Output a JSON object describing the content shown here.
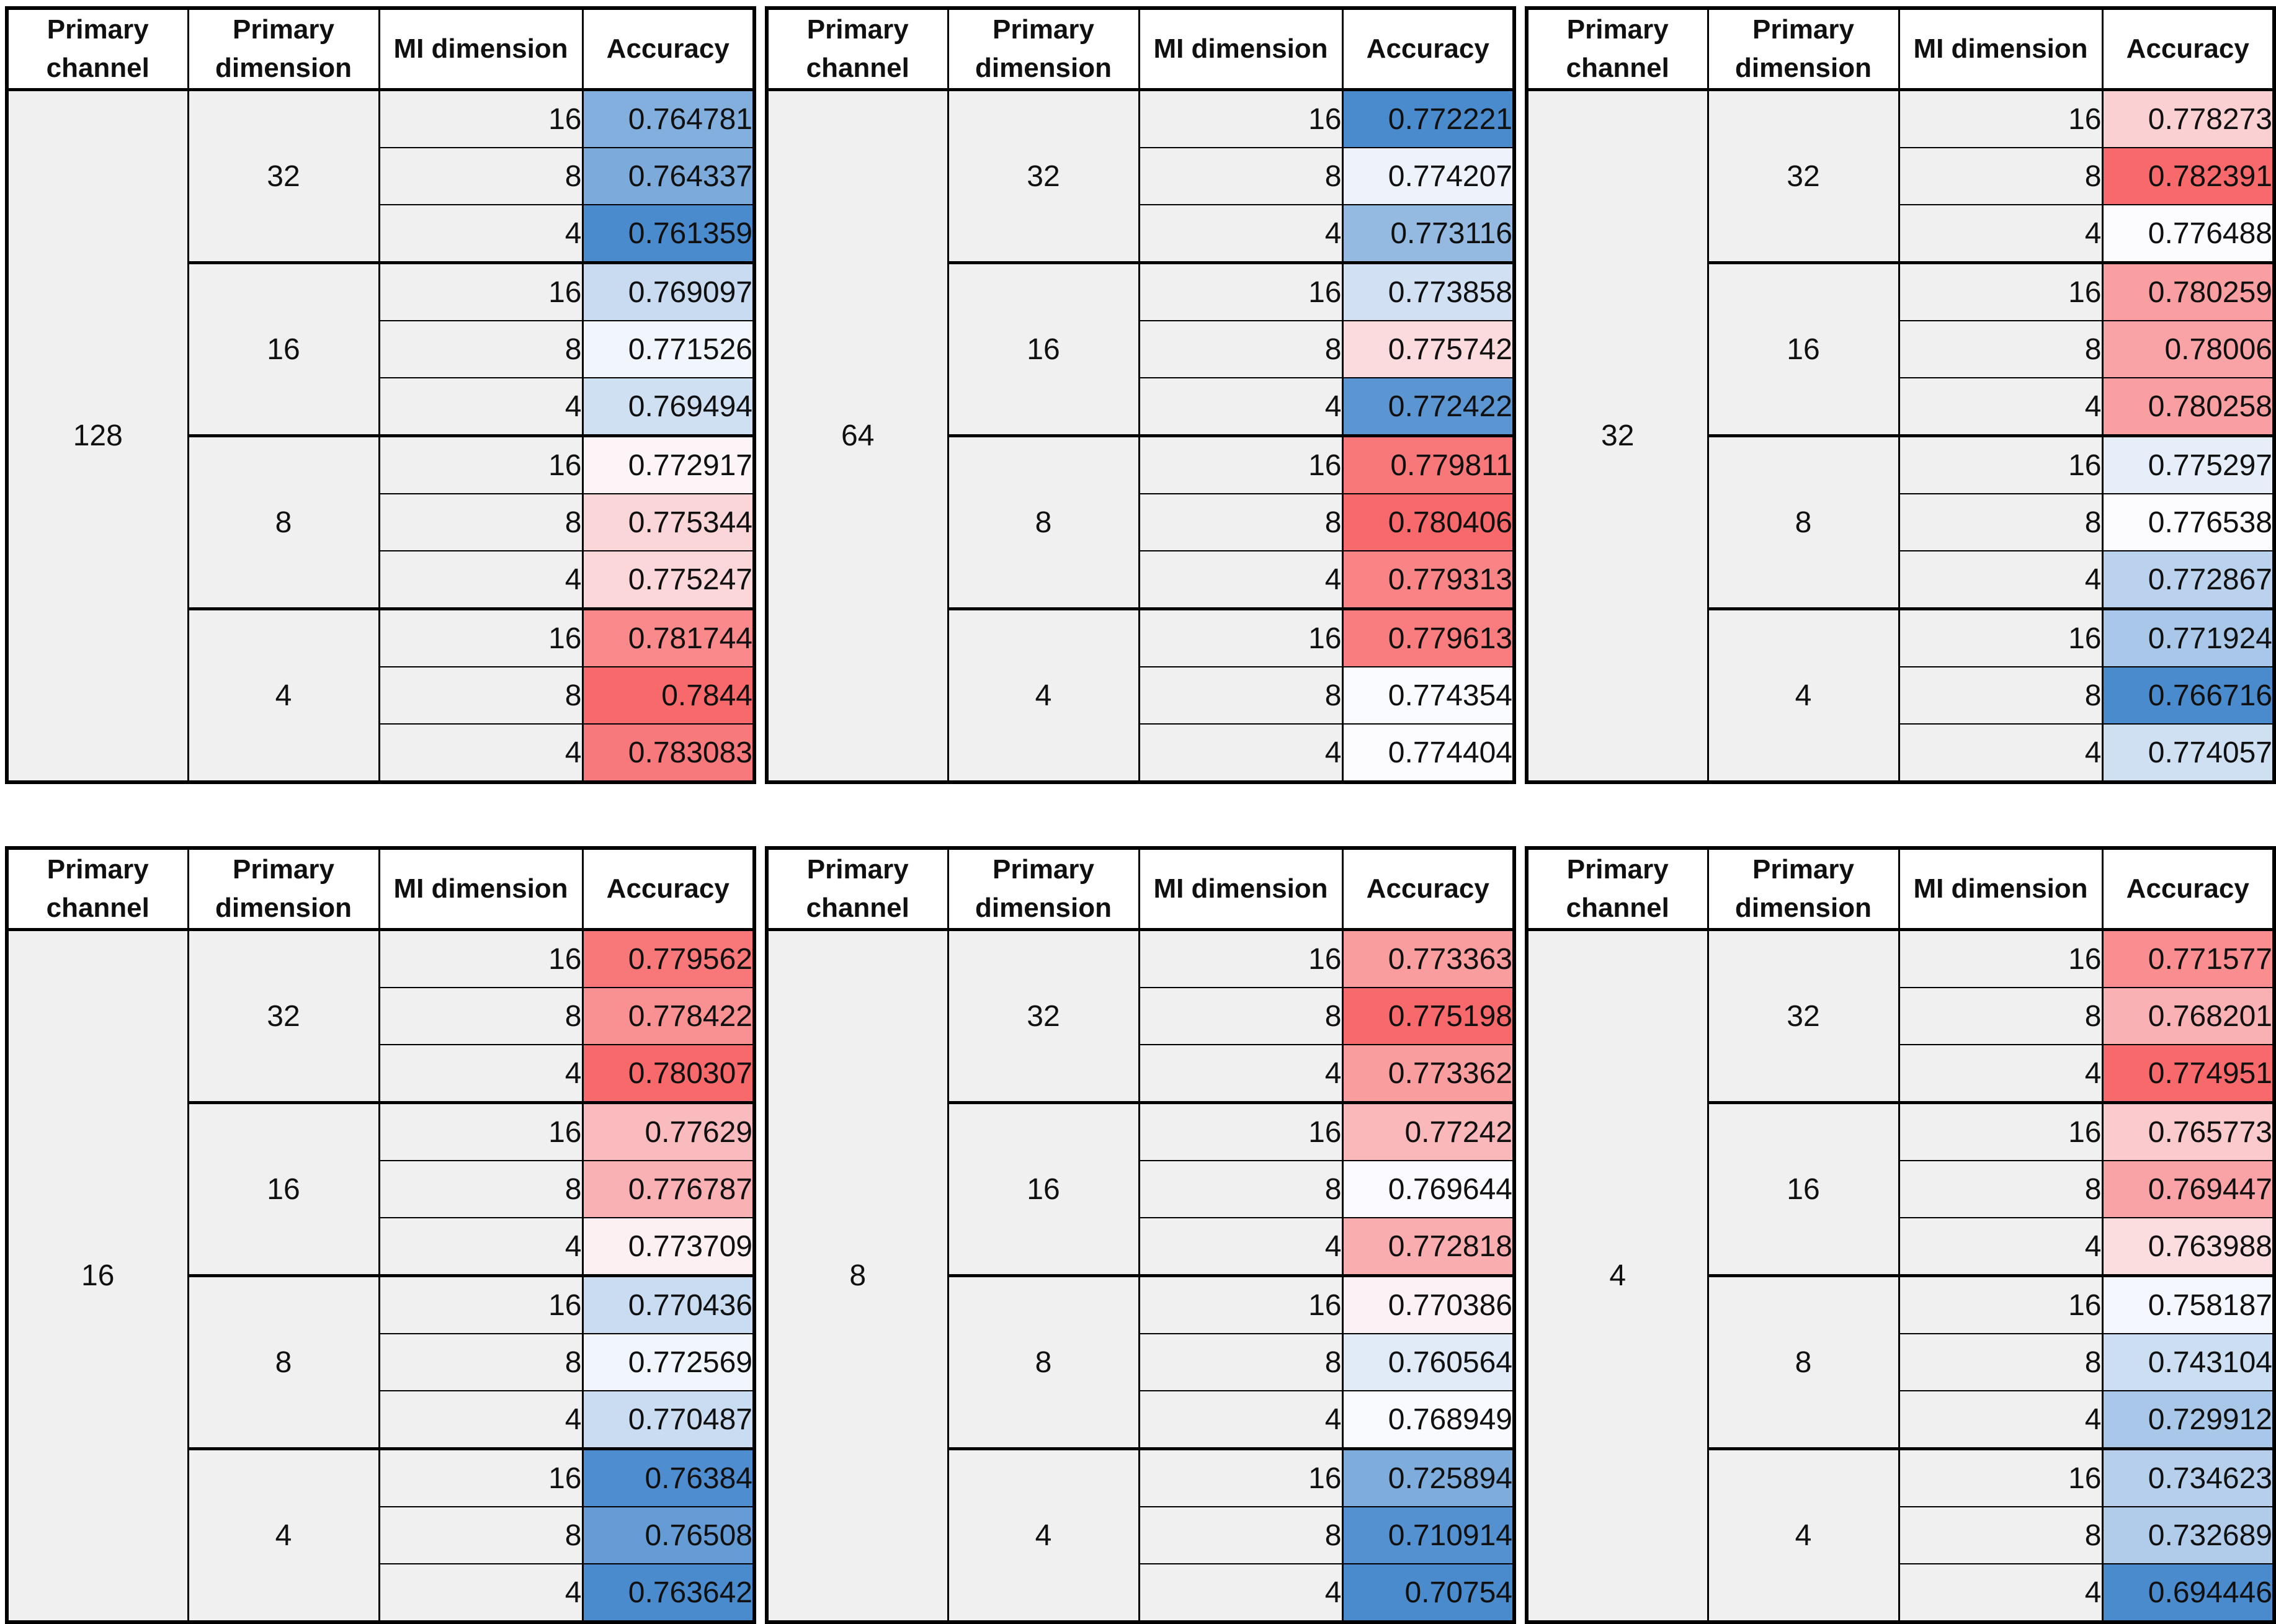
{
  "columns": {
    "primary_channel": "Primary channel",
    "primary_dimension": "Primary dimension",
    "mi_dimension": "MI dimension",
    "accuracy": "Accuracy"
  },
  "colors": {
    "scale_min_blue": "#4A8BCE",
    "scale_mid_white": "#FCFCFF",
    "scale_max_red": "#F8696B",
    "label_cell_bg": "#F0F0F0",
    "header_bg": "#FFFFFF",
    "border": "#000000"
  },
  "chart_data": {
    "type": "table",
    "description": "Six spreadsheet tables of classification accuracy versus Primary channel, Primary dimension and MI dimension. Accuracy cells use a 3-color conditional-format scale computed per table: minimum = blue, median = white, maximum = red.",
    "color_scale": {
      "min": "#4A8BCE",
      "mid": "#FCFCFF",
      "max": "#F8696B",
      "midpoint": "median of each table"
    },
    "tables": [
      {
        "primary_channel": "128",
        "groups": [
          {
            "primary_dimension": "32",
            "rows": [
              {
                "mi_dimension": "16",
                "accuracy": "0.764781"
              },
              {
                "mi_dimension": "8",
                "accuracy": "0.764337"
              },
              {
                "mi_dimension": "4",
                "accuracy": "0.761359"
              }
            ]
          },
          {
            "primary_dimension": "16",
            "rows": [
              {
                "mi_dimension": "16",
                "accuracy": "0.769097"
              },
              {
                "mi_dimension": "8",
                "accuracy": "0.771526"
              },
              {
                "mi_dimension": "4",
                "accuracy": "0.769494"
              }
            ]
          },
          {
            "primary_dimension": "8",
            "rows": [
              {
                "mi_dimension": "16",
                "accuracy": "0.772917"
              },
              {
                "mi_dimension": "8",
                "accuracy": "0.775344"
              },
              {
                "mi_dimension": "4",
                "accuracy": "0.775247"
              }
            ]
          },
          {
            "primary_dimension": "4",
            "rows": [
              {
                "mi_dimension": "16",
                "accuracy": "0.781744"
              },
              {
                "mi_dimension": "8",
                "accuracy": "0.7844"
              },
              {
                "mi_dimension": "4",
                "accuracy": "0.783083"
              }
            ]
          }
        ]
      },
      {
        "primary_channel": "64",
        "groups": [
          {
            "primary_dimension": "32",
            "rows": [
              {
                "mi_dimension": "16",
                "accuracy": "0.772221"
              },
              {
                "mi_dimension": "8",
                "accuracy": "0.774207"
              },
              {
                "mi_dimension": "4",
                "accuracy": "0.773116"
              }
            ]
          },
          {
            "primary_dimension": "16",
            "rows": [
              {
                "mi_dimension": "16",
                "accuracy": "0.773858"
              },
              {
                "mi_dimension": "8",
                "accuracy": "0.775742"
              },
              {
                "mi_dimension": "4",
                "accuracy": "0.772422"
              }
            ]
          },
          {
            "primary_dimension": "8",
            "rows": [
              {
                "mi_dimension": "16",
                "accuracy": "0.779811"
              },
              {
                "mi_dimension": "8",
                "accuracy": "0.780406"
              },
              {
                "mi_dimension": "4",
                "accuracy": "0.779313"
              }
            ]
          },
          {
            "primary_dimension": "4",
            "rows": [
              {
                "mi_dimension": "16",
                "accuracy": "0.779613"
              },
              {
                "mi_dimension": "8",
                "accuracy": "0.774354"
              },
              {
                "mi_dimension": "4",
                "accuracy": "0.774404"
              }
            ]
          }
        ]
      },
      {
        "primary_channel": "32",
        "groups": [
          {
            "primary_dimension": "32",
            "rows": [
              {
                "mi_dimension": "16",
                "accuracy": "0.778273"
              },
              {
                "mi_dimension": "8",
                "accuracy": "0.782391"
              },
              {
                "mi_dimension": "4",
                "accuracy": "0.776488"
              }
            ]
          },
          {
            "primary_dimension": "16",
            "rows": [
              {
                "mi_dimension": "16",
                "accuracy": "0.780259"
              },
              {
                "mi_dimension": "8",
                "accuracy": "0.78006"
              },
              {
                "mi_dimension": "4",
                "accuracy": "0.780258"
              }
            ]
          },
          {
            "primary_dimension": "8",
            "rows": [
              {
                "mi_dimension": "16",
                "accuracy": "0.775297"
              },
              {
                "mi_dimension": "8",
                "accuracy": "0.776538"
              },
              {
                "mi_dimension": "4",
                "accuracy": "0.772867"
              }
            ]
          },
          {
            "primary_dimension": "4",
            "rows": [
              {
                "mi_dimension": "16",
                "accuracy": "0.771924"
              },
              {
                "mi_dimension": "8",
                "accuracy": "0.766716"
              },
              {
                "mi_dimension": "4",
                "accuracy": "0.774057"
              }
            ]
          }
        ]
      },
      {
        "primary_channel": "16",
        "groups": [
          {
            "primary_dimension": "32",
            "rows": [
              {
                "mi_dimension": "16",
                "accuracy": "0.779562"
              },
              {
                "mi_dimension": "8",
                "accuracy": "0.778422"
              },
              {
                "mi_dimension": "4",
                "accuracy": "0.780307"
              }
            ]
          },
          {
            "primary_dimension": "16",
            "rows": [
              {
                "mi_dimension": "16",
                "accuracy": "0.77629"
              },
              {
                "mi_dimension": "8",
                "accuracy": "0.776787"
              },
              {
                "mi_dimension": "4",
                "accuracy": "0.773709"
              }
            ]
          },
          {
            "primary_dimension": "8",
            "rows": [
              {
                "mi_dimension": "16",
                "accuracy": "0.770436"
              },
              {
                "mi_dimension": "8",
                "accuracy": "0.772569"
              },
              {
                "mi_dimension": "4",
                "accuracy": "0.770487"
              }
            ]
          },
          {
            "primary_dimension": "4",
            "rows": [
              {
                "mi_dimension": "16",
                "accuracy": "0.76384"
              },
              {
                "mi_dimension": "8",
                "accuracy": "0.76508"
              },
              {
                "mi_dimension": "4",
                "accuracy": "0.763642"
              }
            ]
          }
        ]
      },
      {
        "primary_channel": "8",
        "groups": [
          {
            "primary_dimension": "32",
            "rows": [
              {
                "mi_dimension": "16",
                "accuracy": "0.773363"
              },
              {
                "mi_dimension": "8",
                "accuracy": "0.775198"
              },
              {
                "mi_dimension": "4",
                "accuracy": "0.773362"
              }
            ]
          },
          {
            "primary_dimension": "16",
            "rows": [
              {
                "mi_dimension": "16",
                "accuracy": "0.77242"
              },
              {
                "mi_dimension": "8",
                "accuracy": "0.769644"
              },
              {
                "mi_dimension": "4",
                "accuracy": "0.772818"
              }
            ]
          },
          {
            "primary_dimension": "8",
            "rows": [
              {
                "mi_dimension": "16",
                "accuracy": "0.770386"
              },
              {
                "mi_dimension": "8",
                "accuracy": "0.760564"
              },
              {
                "mi_dimension": "4",
                "accuracy": "0.768949"
              }
            ]
          },
          {
            "primary_dimension": "4",
            "rows": [
              {
                "mi_dimension": "16",
                "accuracy": "0.725894"
              },
              {
                "mi_dimension": "8",
                "accuracy": "0.710914"
              },
              {
                "mi_dimension": "4",
                "accuracy": "0.70754"
              }
            ]
          }
        ]
      },
      {
        "primary_channel": "4",
        "groups": [
          {
            "primary_dimension": "32",
            "rows": [
              {
                "mi_dimension": "16",
                "accuracy": "0.771577"
              },
              {
                "mi_dimension": "8",
                "accuracy": "0.768201"
              },
              {
                "mi_dimension": "4",
                "accuracy": "0.774951"
              }
            ]
          },
          {
            "primary_dimension": "16",
            "rows": [
              {
                "mi_dimension": "16",
                "accuracy": "0.765773"
              },
              {
                "mi_dimension": "8",
                "accuracy": "0.769447"
              },
              {
                "mi_dimension": "4",
                "accuracy": "0.763988"
              }
            ]
          },
          {
            "primary_dimension": "8",
            "rows": [
              {
                "mi_dimension": "16",
                "accuracy": "0.758187"
              },
              {
                "mi_dimension": "8",
                "accuracy": "0.743104"
              },
              {
                "mi_dimension": "4",
                "accuracy": "0.729912"
              }
            ]
          },
          {
            "primary_dimension": "4",
            "rows": [
              {
                "mi_dimension": "16",
                "accuracy": "0.734623"
              },
              {
                "mi_dimension": "8",
                "accuracy": "0.732689"
              },
              {
                "mi_dimension": "4",
                "accuracy": "0.694446"
              }
            ]
          }
        ]
      }
    ]
  }
}
